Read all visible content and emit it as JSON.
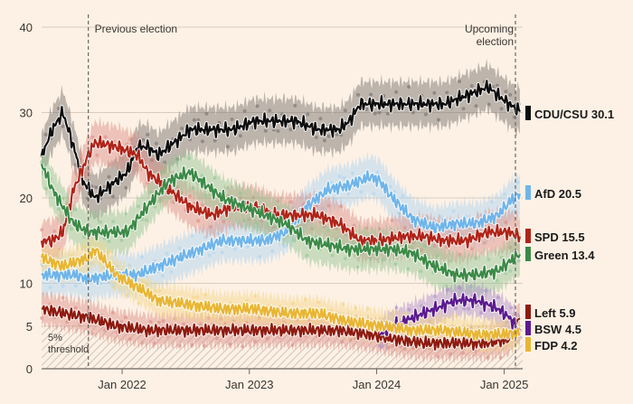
{
  "chart_data": {
    "type": "line",
    "title": "",
    "xlabel": "",
    "ylabel": "",
    "ylim": [
      0,
      40
    ],
    "y_ticks": [
      0,
      5,
      10,
      20,
      30,
      40
    ],
    "x_range": [
      "2021-05-15",
      "2025-02-23"
    ],
    "x_ticks": [
      {
        "date": "2022-01-01",
        "label": "Jan 2022"
      },
      {
        "date": "2023-01-01",
        "label": "Jan 2023"
      },
      {
        "date": "2024-01-01",
        "label": "Jan 2024"
      },
      {
        "date": "2025-01-01",
        "label": "Jan 2025"
      }
    ],
    "annotations": [
      {
        "id": "previous-election",
        "date": "2021-09-26",
        "lines": [
          "Previous election"
        ]
      },
      {
        "id": "upcoming-election",
        "date": "2025-02-23",
        "lines": [
          "Upcoming",
          "election"
        ]
      }
    ],
    "threshold": {
      "value": 5,
      "lines": [
        "5%",
        "threshold"
      ]
    },
    "grid": true,
    "legend_position": "right-end-labels",
    "series": [
      {
        "name": "CDU/CSU",
        "label": "CDU/CSU 30.1",
        "color": "#0d0d0d",
        "band_color": "#6f6a66",
        "points": [
          [
            "2021-05-15",
            25
          ],
          [
            "2021-06-15",
            28
          ],
          [
            "2021-07-15",
            30
          ],
          [
            "2021-08-15",
            26
          ],
          [
            "2021-09-10",
            22
          ],
          [
            "2021-10-15",
            20
          ],
          [
            "2021-11-15",
            21
          ],
          [
            "2021-12-15",
            22
          ],
          [
            "2022-01-15",
            23
          ],
          [
            "2022-02-15",
            26
          ],
          [
            "2022-03-15",
            26
          ],
          [
            "2022-04-15",
            25
          ],
          [
            "2022-05-15",
            26
          ],
          [
            "2022-06-15",
            27
          ],
          [
            "2022-07-15",
            28
          ],
          [
            "2022-09-15",
            28
          ],
          [
            "2022-11-15",
            28
          ],
          [
            "2023-01-15",
            29
          ],
          [
            "2023-03-15",
            29
          ],
          [
            "2023-05-15",
            29
          ],
          [
            "2023-07-15",
            28
          ],
          [
            "2023-09-15",
            28
          ],
          [
            "2023-10-15",
            29
          ],
          [
            "2023-11-15",
            31
          ],
          [
            "2024-01-15",
            31
          ],
          [
            "2024-03-15",
            31
          ],
          [
            "2024-05-15",
            31
          ],
          [
            "2024-07-15",
            31
          ],
          [
            "2024-09-15",
            32
          ],
          [
            "2024-11-15",
            33
          ],
          [
            "2024-12-15",
            32
          ],
          [
            "2025-01-15",
            31
          ],
          [
            "2025-02-15",
            30.1
          ]
        ]
      },
      {
        "name": "AfD",
        "label": "AfD 20.5",
        "color": "#6fb5ea",
        "band_color": "#a9d3f2",
        "points": [
          [
            "2021-05-15",
            11
          ],
          [
            "2021-06-15",
            11
          ],
          [
            "2021-08-15",
            11
          ],
          [
            "2021-09-26",
            10.5
          ],
          [
            "2021-12-15",
            11
          ],
          [
            "2022-02-15",
            11
          ],
          [
            "2022-04-15",
            12
          ],
          [
            "2022-06-15",
            13
          ],
          [
            "2022-08-15",
            14
          ],
          [
            "2022-10-15",
            15
          ],
          [
            "2022-12-15",
            15
          ],
          [
            "2023-02-15",
            15
          ],
          [
            "2023-04-15",
            16
          ],
          [
            "2023-06-15",
            19
          ],
          [
            "2023-08-15",
            21
          ],
          [
            "2023-10-15",
            21.5
          ],
          [
            "2023-12-15",
            22.5
          ],
          [
            "2024-01-10",
            22
          ],
          [
            "2024-02-15",
            20
          ],
          [
            "2024-04-15",
            17.5
          ],
          [
            "2024-06-15",
            16.5
          ],
          [
            "2024-08-15",
            17
          ],
          [
            "2024-10-15",
            17
          ],
          [
            "2024-12-15",
            18
          ],
          [
            "2025-01-15",
            19.5
          ],
          [
            "2025-02-15",
            20.5
          ]
        ]
      },
      {
        "name": "SPD",
        "label": "SPD 15.5",
        "color": "#b02418",
        "band_color": "#d98a80",
        "points": [
          [
            "2021-05-15",
            15
          ],
          [
            "2021-06-15",
            15
          ],
          [
            "2021-07-15",
            16
          ],
          [
            "2021-08-15",
            21
          ],
          [
            "2021-09-26",
            25
          ],
          [
            "2021-10-15",
            26.5
          ],
          [
            "2021-12-15",
            26
          ],
          [
            "2022-02-15",
            25
          ],
          [
            "2022-03-15",
            23
          ],
          [
            "2022-05-15",
            21
          ],
          [
            "2022-07-15",
            19
          ],
          [
            "2022-09-15",
            18
          ],
          [
            "2022-11-15",
            19
          ],
          [
            "2023-01-15",
            19
          ],
          [
            "2023-03-15",
            18
          ],
          [
            "2023-05-15",
            18
          ],
          [
            "2023-07-15",
            18
          ],
          [
            "2023-09-15",
            17
          ],
          [
            "2023-11-15",
            15
          ],
          [
            "2024-01-15",
            15
          ],
          [
            "2024-03-15",
            15.5
          ],
          [
            "2024-05-15",
            15.5
          ],
          [
            "2024-07-15",
            15
          ],
          [
            "2024-09-15",
            15
          ],
          [
            "2024-11-15",
            16
          ],
          [
            "2025-01-15",
            16
          ],
          [
            "2025-02-15",
            15.5
          ]
        ]
      },
      {
        "name": "Green",
        "label": "Green 13.4",
        "color": "#3c8a47",
        "band_color": "#8fc48f",
        "points": [
          [
            "2021-05-15",
            24
          ],
          [
            "2021-06-15",
            21
          ],
          [
            "2021-07-15",
            19
          ],
          [
            "2021-08-15",
            17
          ],
          [
            "2021-09-26",
            16
          ],
          [
            "2021-11-15",
            16
          ],
          [
            "2022-01-15",
            16
          ],
          [
            "2022-03-15",
            19
          ],
          [
            "2022-05-15",
            22
          ],
          [
            "2022-07-15",
            23
          ],
          [
            "2022-08-15",
            22
          ],
          [
            "2022-10-15",
            20
          ],
          [
            "2022-12-15",
            19
          ],
          [
            "2023-02-15",
            18
          ],
          [
            "2023-04-15",
            17
          ],
          [
            "2023-06-15",
            15
          ],
          [
            "2023-08-15",
            14.5
          ],
          [
            "2023-10-15",
            14
          ],
          [
            "2023-12-15",
            14
          ],
          [
            "2024-02-15",
            14
          ],
          [
            "2024-04-15",
            13.5
          ],
          [
            "2024-06-15",
            12
          ],
          [
            "2024-08-15",
            11
          ],
          [
            "2024-10-15",
            11
          ],
          [
            "2024-12-15",
            11.5
          ],
          [
            "2025-01-15",
            12.5
          ],
          [
            "2025-02-15",
            13.4
          ]
        ]
      },
      {
        "name": "Left",
        "label": "Left 5.9",
        "color": "#8e1b10",
        "band_color": "#d98a80",
        "points": [
          [
            "2021-05-15",
            7
          ],
          [
            "2021-07-15",
            6.5
          ],
          [
            "2021-09-26",
            6
          ],
          [
            "2021-12-15",
            5
          ],
          [
            "2022-03-15",
            4.5
          ],
          [
            "2022-06-15",
            4.5
          ],
          [
            "2022-09-15",
            4.5
          ],
          [
            "2022-12-15",
            4.5
          ],
          [
            "2023-03-15",
            4.5
          ],
          [
            "2023-06-15",
            4.5
          ],
          [
            "2023-09-15",
            4.5
          ],
          [
            "2023-12-15",
            4
          ],
          [
            "2024-02-15",
            3.5
          ],
          [
            "2024-05-15",
            3
          ],
          [
            "2024-08-15",
            3
          ],
          [
            "2024-11-15",
            3
          ],
          [
            "2025-01-15",
            3.5
          ],
          [
            "2025-02-15",
            5.9
          ]
        ]
      },
      {
        "name": "BSW",
        "label": "BSW 4.5",
        "color": "#5b1a8f",
        "band_color": "#a88ac8",
        "points": [
          [
            "2024-01-10",
            4
          ],
          [
            "2024-02-15",
            5
          ],
          [
            "2024-04-15",
            6
          ],
          [
            "2024-06-15",
            7
          ],
          [
            "2024-08-15",
            8
          ],
          [
            "2024-10-15",
            8
          ],
          [
            "2024-12-15",
            7
          ],
          [
            "2025-01-15",
            6
          ],
          [
            "2025-02-15",
            4.5
          ]
        ]
      },
      {
        "name": "FDP",
        "label": "FDP 4.2",
        "color": "#e8b634",
        "band_color": "#f3d482",
        "points": [
          [
            "2021-05-15",
            13
          ],
          [
            "2021-07-15",
            12
          ],
          [
            "2021-09-26",
            13
          ],
          [
            "2021-10-15",
            14
          ],
          [
            "2021-12-15",
            11
          ],
          [
            "2022-02-15",
            9.5
          ],
          [
            "2022-04-15",
            8
          ],
          [
            "2022-07-15",
            7.5
          ],
          [
            "2022-10-15",
            7
          ],
          [
            "2023-01-15",
            7
          ],
          [
            "2023-04-15",
            6.5
          ],
          [
            "2023-07-15",
            6.5
          ],
          [
            "2023-10-15",
            5.5
          ],
          [
            "2024-01-15",
            5
          ],
          [
            "2024-04-15",
            4.5
          ],
          [
            "2024-07-15",
            4.5
          ],
          [
            "2024-10-15",
            4
          ],
          [
            "2024-12-15",
            4
          ],
          [
            "2025-02-15",
            4.2
          ]
        ]
      }
    ]
  }
}
